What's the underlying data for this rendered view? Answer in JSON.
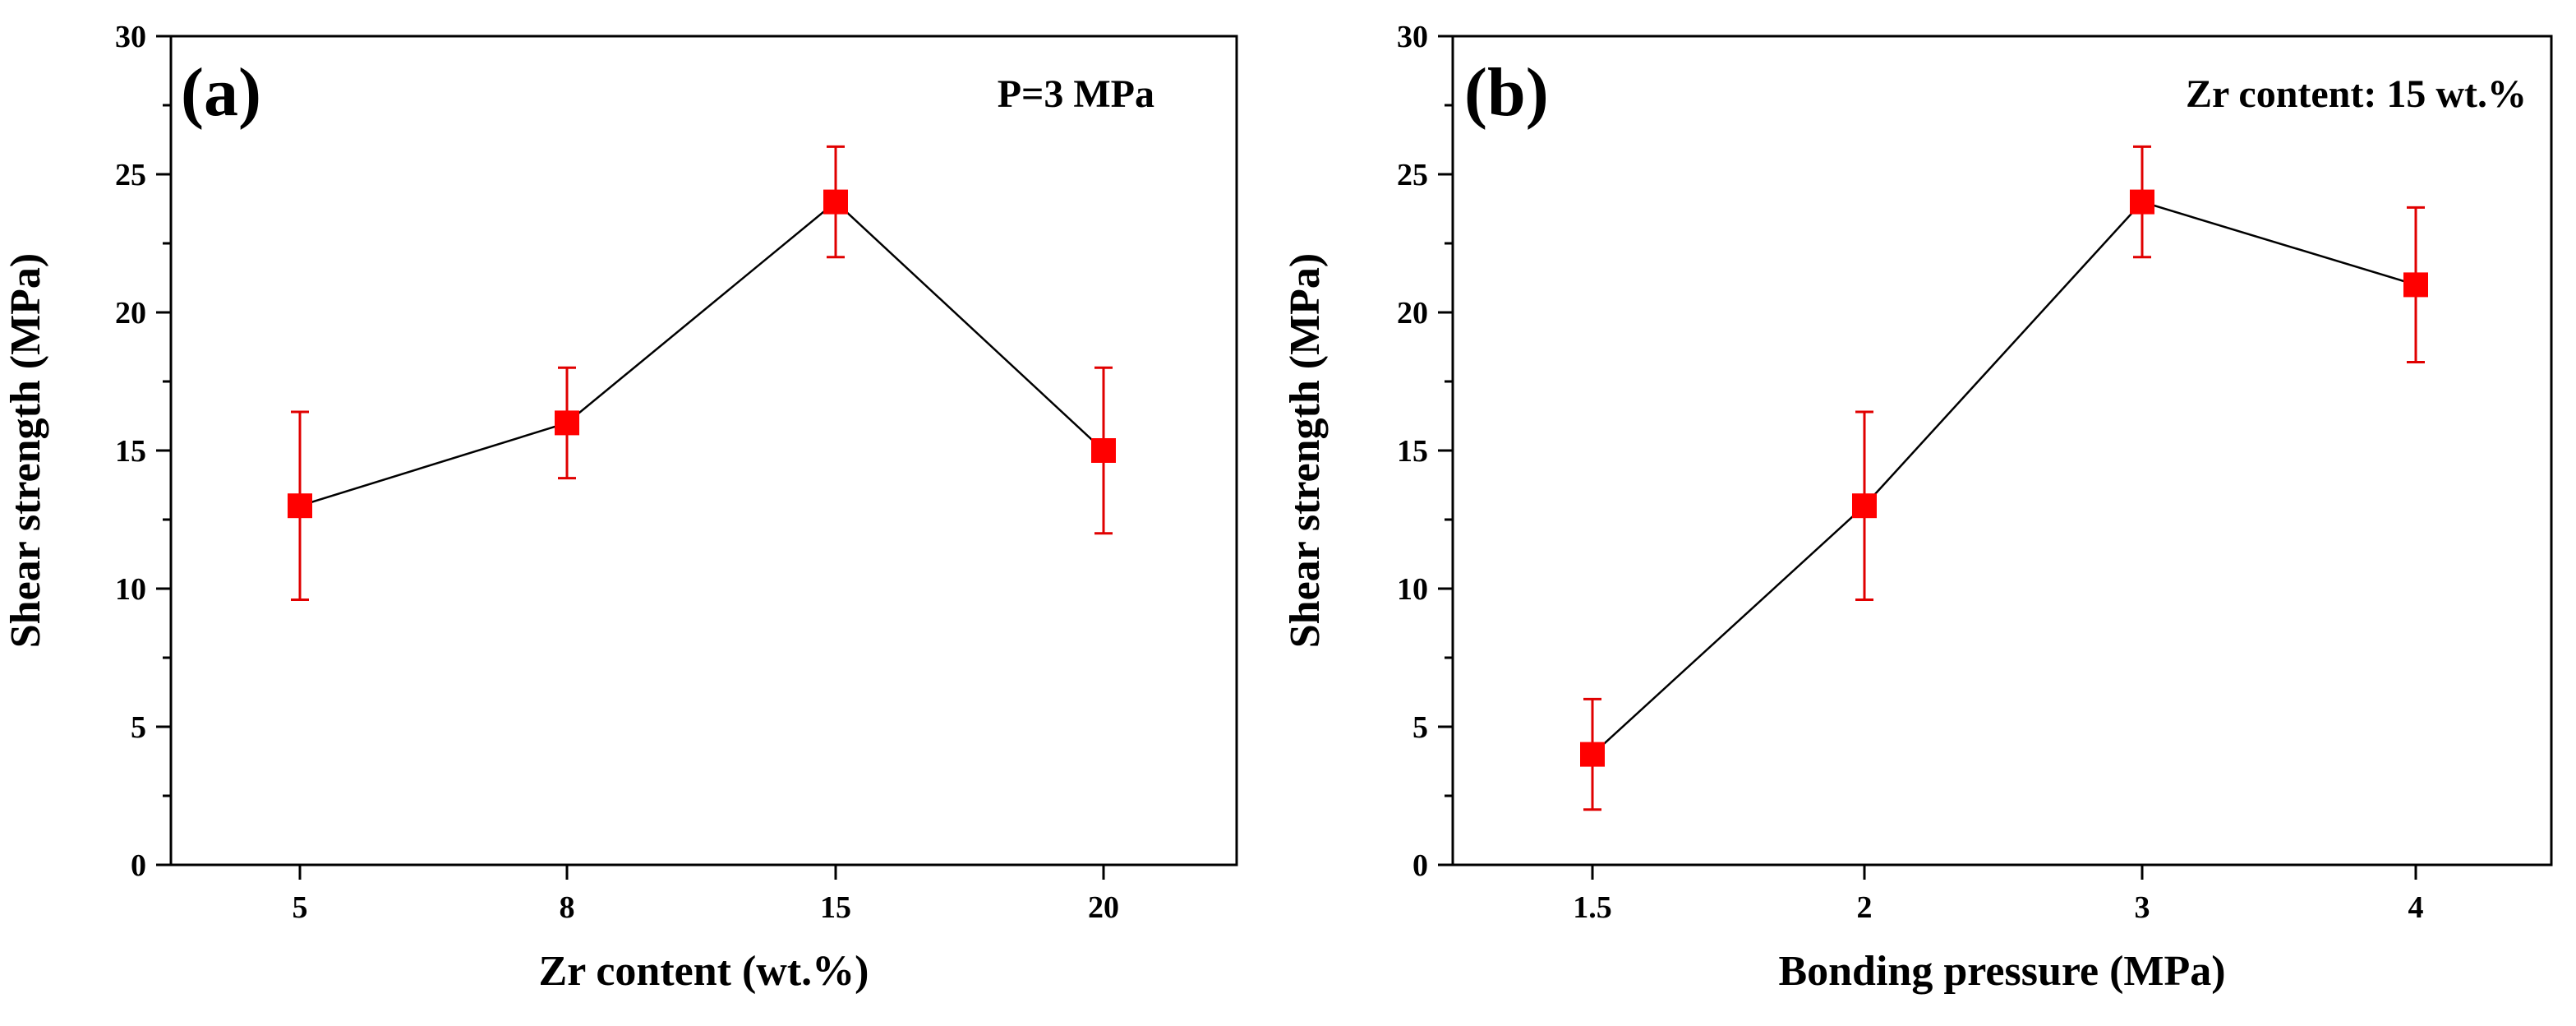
{
  "chart_data": [
    {
      "type": "line",
      "panel_label": "(a)",
      "annotation": "P=3 MPa",
      "xlabel": "Zr content (wt.%)",
      "ylabel": "Shear strength (MPa)",
      "categories": [
        "5",
        "8",
        "15",
        "20"
      ],
      "values": [
        13,
        16,
        24,
        15
      ],
      "err_low": [
        9.6,
        14,
        22,
        12
      ],
      "err_high": [
        16.4,
        18,
        26,
        18
      ],
      "ylim": [
        0,
        30
      ],
      "yticks": [
        "0",
        "5",
        "10",
        "15",
        "20",
        "25",
        "30"
      ],
      "marker": "square",
      "marker_color": "#ff0000",
      "line_color": "#000000",
      "error_color": "#e00000",
      "grid": false
    },
    {
      "type": "line",
      "panel_label": "(b)",
      "annotation": "Zr content: 15 wt.%",
      "xlabel": "Bonding pressure (MPa)",
      "ylabel": "Shear strength (MPa)",
      "categories": [
        "1.5",
        "2",
        "3",
        "4"
      ],
      "values": [
        4,
        13,
        24,
        21
      ],
      "err_low": [
        2,
        9.6,
        22,
        18.2
      ],
      "err_high": [
        6,
        16.4,
        26,
        23.8
      ],
      "ylim": [
        0,
        30
      ],
      "yticks": [
        "0",
        "5",
        "10",
        "15",
        "20",
        "25",
        "30"
      ],
      "marker": "square",
      "marker_color": "#ff0000",
      "line_color": "#000000",
      "error_color": "#e00000",
      "grid": false
    }
  ]
}
